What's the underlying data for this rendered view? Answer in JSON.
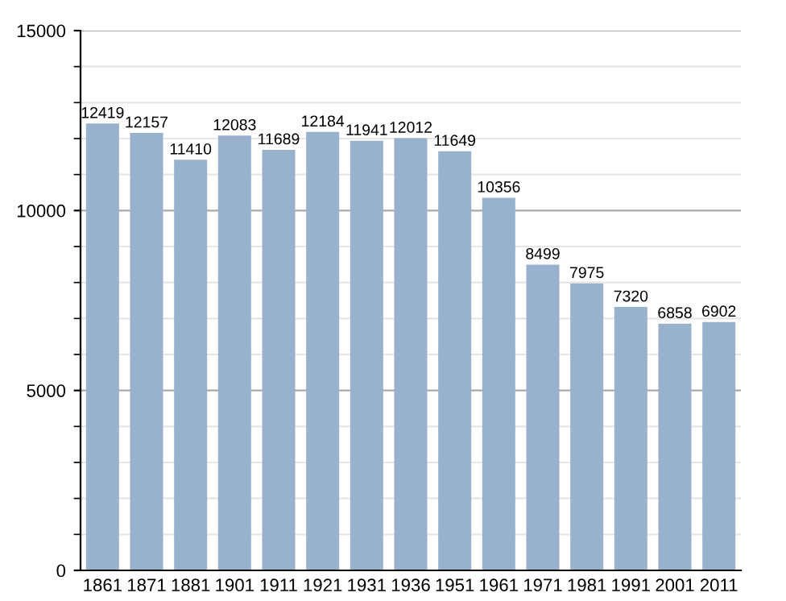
{
  "chart_data": {
    "type": "bar",
    "categories": [
      "1861",
      "1871",
      "1881",
      "1901",
      "1911",
      "1921",
      "1931",
      "1936",
      "1951",
      "1961",
      "1971",
      "1981",
      "1991",
      "2001",
      "2011"
    ],
    "values": [
      12419,
      12157,
      11410,
      12083,
      11689,
      12184,
      11941,
      12012,
      11649,
      10356,
      8499,
      7975,
      7320,
      6858,
      6902
    ],
    "color": "#98b1cc",
    "ylim": [
      0,
      15000
    ],
    "yticks": [
      0,
      5000,
      10000,
      15000
    ],
    "grid": "y",
    "data_labels": true
  }
}
